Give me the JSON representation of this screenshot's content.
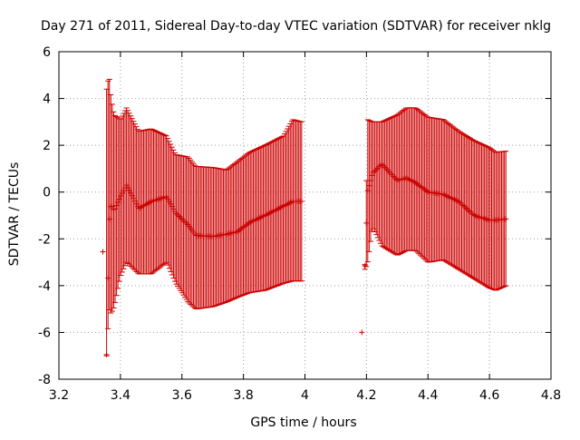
{
  "chart_data": {
    "type": "scatter",
    "title": "Day 271 of 2011, Sidereal Day-to-day VTEC variation (SDTVAR) for receiver nklg",
    "xlabel": "GPS time / hours",
    "ylabel": "SDTVAR / TECUs",
    "xlim": [
      3.2,
      4.8
    ],
    "ylim": [
      -8,
      6
    ],
    "xticks": [
      3.2,
      3.4,
      3.6,
      3.8,
      4.0,
      4.2,
      4.4,
      4.6,
      4.8
    ],
    "xtick_labels": [
      "3.2",
      "3.4",
      "3.6",
      "3.8",
      "4",
      "4.2",
      "4.4",
      "4.6",
      "4.8"
    ],
    "yticks": [
      -8,
      -6,
      -4,
      -2,
      0,
      2,
      4,
      6
    ],
    "ytick_labels": [
      "-8",
      "-6",
      "-4",
      "-2",
      "0",
      "2",
      "4",
      "6"
    ],
    "grid": true,
    "series": [
      {
        "name": "SDTVAR",
        "color": "#cc0000",
        "marker": "plus-with-errorbars",
        "isolated_points": [
          {
            "x": 3.343,
            "y": -2.55
          },
          {
            "x": 4.185,
            "y": -6.0
          }
        ],
        "segments": [
          {
            "x_start": 3.355,
            "x_end": 3.99,
            "control_points": [
              {
                "x": 3.355,
                "y": -6.95,
                "high": 4.4,
                "low": -7.0
              },
              {
                "x": 3.363,
                "y": -1.3,
                "high": 5.0,
                "low": -5.0
              },
              {
                "x": 3.37,
                "y": -0.5,
                "high": 4.0,
                "low": -5.2
              },
              {
                "x": 3.38,
                "y": -0.8,
                "high": 3.3,
                "low": -4.9
              },
              {
                "x": 3.4,
                "y": -0.2,
                "high": 3.1,
                "low": -3.6
              },
              {
                "x": 3.42,
                "y": 0.3,
                "high": 3.6,
                "low": -3.0
              },
              {
                "x": 3.46,
                "y": -0.7,
                "high": 2.6,
                "low": -3.5
              },
              {
                "x": 3.5,
                "y": -0.4,
                "high": 2.7,
                "low": -3.5
              },
              {
                "x": 3.55,
                "y": -0.2,
                "high": 2.4,
                "low": -3.0
              },
              {
                "x": 3.58,
                "y": -0.9,
                "high": 1.6,
                "low": -3.9
              },
              {
                "x": 3.62,
                "y": -1.4,
                "high": 1.5,
                "low": -4.7
              },
              {
                "x": 3.645,
                "y": -1.85,
                "high": 1.1,
                "low": -5.0
              },
              {
                "x": 3.7,
                "y": -1.9,
                "high": 1.05,
                "low": -4.9
              },
              {
                "x": 3.745,
                "y": -1.8,
                "high": 0.95,
                "low": -4.7
              },
              {
                "x": 3.78,
                "y": -1.7,
                "high": 1.3,
                "low": -4.5
              },
              {
                "x": 3.82,
                "y": -1.3,
                "high": 1.7,
                "low": -4.3
              },
              {
                "x": 3.87,
                "y": -1.0,
                "high": 2.0,
                "low": -4.2
              },
              {
                "x": 3.93,
                "y": -0.6,
                "high": 2.4,
                "low": -3.9
              },
              {
                "x": 3.96,
                "y": -0.4,
                "high": 3.1,
                "low": -3.8
              },
              {
                "x": 3.99,
                "y": -0.4,
                "high": 3.0,
                "low": -3.8
              }
            ]
          },
          {
            "x_start": 4.195,
            "x_end": 4.655,
            "control_points": [
              {
                "x": 4.195,
                "y": -3.15,
                "high": -3.1,
                "low": -3.3
              },
              {
                "x": 4.203,
                "y": 0.0,
                "high": 3.1,
                "low": -3.1
              },
              {
                "x": 4.22,
                "y": 0.8,
                "high": 3.0,
                "low": -1.5
              },
              {
                "x": 4.25,
                "y": 1.2,
                "high": 3.0,
                "low": -2.3
              },
              {
                "x": 4.3,
                "y": 0.5,
                "high": 3.3,
                "low": -2.7
              },
              {
                "x": 4.33,
                "y": 0.6,
                "high": 3.6,
                "low": -2.5
              },
              {
                "x": 4.36,
                "y": 0.4,
                "high": 3.6,
                "low": -2.5
              },
              {
                "x": 4.4,
                "y": 0.0,
                "high": 3.2,
                "low": -3.0
              },
              {
                "x": 4.45,
                "y": -0.1,
                "high": 3.1,
                "low": -2.9
              },
              {
                "x": 4.5,
                "y": -0.4,
                "high": 2.6,
                "low": -3.3
              },
              {
                "x": 4.55,
                "y": -1.0,
                "high": 2.2,
                "low": -3.7
              },
              {
                "x": 4.6,
                "y": -1.2,
                "high": 1.9,
                "low": -4.1
              },
              {
                "x": 4.62,
                "y": -1.2,
                "high": 1.7,
                "low": -4.2
              },
              {
                "x": 4.655,
                "y": -1.15,
                "high": 1.75,
                "low": -4.0
              }
            ]
          }
        ]
      }
    ]
  }
}
